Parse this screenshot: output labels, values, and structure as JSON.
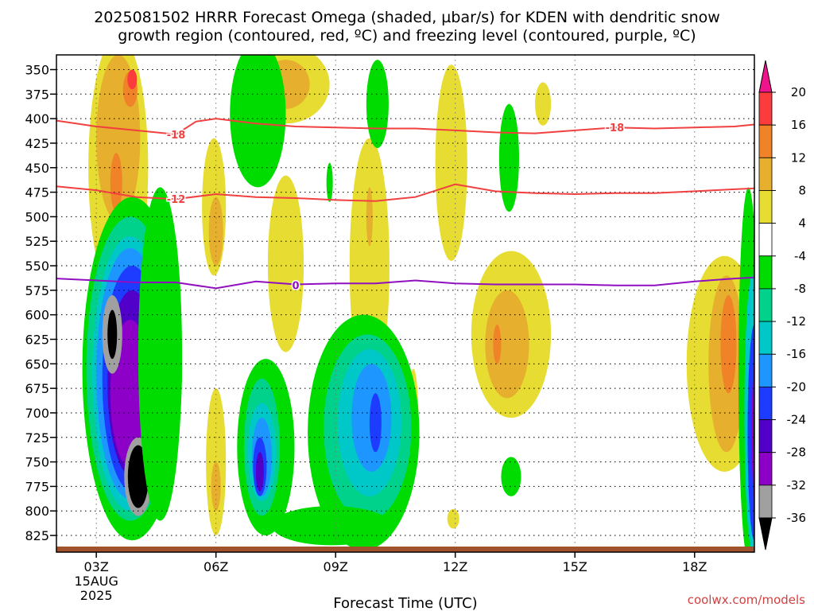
{
  "title_line1": "2025081502 HRRR Forecast Omega (shaded, µbar/s) for KDEN with dendritic snow",
  "title_line2": "growth region (contoured, red, ºC) and freezing level (contoured, purple, ºC)",
  "credit": "coolwx.com/models",
  "chart_data": {
    "type": "heatmap",
    "xlabel": "Forecast Time (UTC)",
    "ylabel": "",
    "x_ticks": [
      {
        "hour": 3,
        "label": "03Z",
        "sub1": "15AUG",
        "sub2": "2025"
      },
      {
        "hour": 6,
        "label": "06Z"
      },
      {
        "hour": 9,
        "label": "09Z"
      },
      {
        "hour": 12,
        "label": "12Z"
      },
      {
        "hour": 15,
        "label": "15Z"
      },
      {
        "hour": 18,
        "label": "18Z"
      }
    ],
    "xlim": [
      2.0,
      19.5
    ],
    "y_ticks": [
      350,
      375,
      400,
      425,
      450,
      475,
      500,
      525,
      550,
      575,
      600,
      625,
      650,
      675,
      700,
      725,
      750,
      775,
      800,
      825
    ],
    "ylim": [
      335,
      842
    ],
    "colorbar": {
      "levels": [
        -36,
        -32,
        -28,
        -24,
        -20,
        -16,
        -12,
        -8,
        -4,
        4,
        8,
        12,
        16,
        20
      ],
      "label_values": [
        "-36",
        "-32",
        "-28",
        "-24",
        "-20",
        "-16",
        "-12",
        "-8",
        "-4",
        "4",
        "8",
        "12",
        "16",
        "20"
      ],
      "colors_low_to_high": [
        "#000000",
        "#a0a0a0",
        "#8c00c8",
        "#5000c8",
        "#1e3cff",
        "#1e96ff",
        "#00c8c8",
        "#00d28c",
        "#00dc00",
        "#ffffff",
        "#e6dc32",
        "#e6af2d",
        "#f08228",
        "#fa3c3c",
        "#f0148c"
      ]
    },
    "blobs": [
      {
        "x": 3.55,
        "p": 450,
        "rx": 0.75,
        "ry": 135,
        "v": 5
      },
      {
        "x": 3.55,
        "p": 420,
        "rx": 0.55,
        "ry": 85,
        "v": 8
      },
      {
        "x": 3.5,
        "p": 465,
        "rx": 0.15,
        "ry": 30,
        "v": 12
      },
      {
        "x": 3.85,
        "p": 370,
        "rx": 0.18,
        "ry": 18,
        "v": 12
      },
      {
        "x": 3.9,
        "p": 360,
        "rx": 0.12,
        "ry": 10,
        "v": 16
      },
      {
        "x": 5.95,
        "p": 490,
        "rx": 0.3,
        "ry": 70,
        "v": 5
      },
      {
        "x": 6.0,
        "p": 515,
        "rx": 0.18,
        "ry": 35,
        "v": 8
      },
      {
        "x": 7.75,
        "p": 365,
        "rx": 1.1,
        "ry": 40,
        "v": 5
      },
      {
        "x": 7.75,
        "p": 365,
        "rx": 0.6,
        "ry": 25,
        "v": 8
      },
      {
        "x": 7.75,
        "p": 548,
        "rx": 0.45,
        "ry": 90,
        "v": 5
      },
      {
        "x": 9.85,
        "p": 550,
        "rx": 0.5,
        "ry": 130,
        "v": 5
      },
      {
        "x": 9.85,
        "p": 500,
        "rx": 0.08,
        "ry": 30,
        "v": 8
      },
      {
        "x": 11.9,
        "p": 445,
        "rx": 0.4,
        "ry": 100,
        "v": 5
      },
      {
        "x": 13.4,
        "p": 620,
        "rx": 1.0,
        "ry": 85,
        "v": 5
      },
      {
        "x": 13.3,
        "p": 630,
        "rx": 0.55,
        "ry": 55,
        "v": 8
      },
      {
        "x": 13.05,
        "p": 630,
        "rx": 0.1,
        "ry": 20,
        "v": 12
      },
      {
        "x": 14.2,
        "p": 385,
        "rx": 0.2,
        "ry": 22,
        "v": 5
      },
      {
        "x": 18.75,
        "p": 650,
        "rx": 0.95,
        "ry": 110,
        "v": 5
      },
      {
        "x": 18.8,
        "p": 650,
        "rx": 0.45,
        "ry": 90,
        "v": 8
      },
      {
        "x": 18.85,
        "p": 630,
        "rx": 0.2,
        "ry": 50,
        "v": 12
      },
      {
        "x": 6.0,
        "p": 750,
        "rx": 0.25,
        "ry": 75,
        "v": 5
      },
      {
        "x": 6.0,
        "p": 775,
        "rx": 0.12,
        "ry": 25,
        "v": 8
      },
      {
        "x": 10.95,
        "p": 710,
        "rx": 0.13,
        "ry": 55,
        "v": 5
      },
      {
        "x": 11.95,
        "p": 808,
        "rx": 0.15,
        "ry": 10,
        "v": 5
      },
      {
        "x": 7.05,
        "p": 395,
        "rx": 0.7,
        "ry": 75,
        "v": -6
      },
      {
        "x": 10.05,
        "p": 385,
        "rx": 0.28,
        "ry": 45,
        "v": -6
      },
      {
        "x": 8.85,
        "p": 465,
        "rx": 0.08,
        "ry": 20,
        "v": -6
      },
      {
        "x": 13.35,
        "p": 440,
        "rx": 0.25,
        "ry": 55,
        "v": -6
      },
      {
        "x": 13.4,
        "p": 765,
        "rx": 0.25,
        "ry": 20,
        "v": -6
      },
      {
        "x": 3.9,
        "p": 655,
        "rx": 1.25,
        "ry": 175,
        "v": -6
      },
      {
        "x": 3.85,
        "p": 655,
        "rx": 1.1,
        "ry": 155,
        "v": -10
      },
      {
        "x": 3.85,
        "p": 660,
        "rx": 0.95,
        "ry": 140,
        "v": -14
      },
      {
        "x": 3.85,
        "p": 660,
        "rx": 0.85,
        "ry": 128,
        "v": -18
      },
      {
        "x": 3.9,
        "p": 665,
        "rx": 0.75,
        "ry": 115,
        "v": -22
      },
      {
        "x": 3.9,
        "p": 670,
        "rx": 0.62,
        "ry": 95,
        "v": -26
      },
      {
        "x": 3.85,
        "p": 680,
        "rx": 0.5,
        "ry": 75,
        "v": -30
      },
      {
        "x": 3.4,
        "p": 620,
        "rx": 0.25,
        "ry": 40,
        "v": -34
      },
      {
        "x": 3.4,
        "p": 620,
        "rx": 0.12,
        "ry": 25,
        "v": -40
      },
      {
        "x": 4.05,
        "p": 765,
        "rx": 0.35,
        "ry": 40,
        "v": -34
      },
      {
        "x": 4.05,
        "p": 765,
        "rx": 0.26,
        "ry": 32,
        "v": -40
      },
      {
        "x": 4.6,
        "p": 640,
        "rx": 0.55,
        "ry": 170,
        "v": -6
      },
      {
        "x": 7.25,
        "p": 735,
        "rx": 0.72,
        "ry": 90,
        "v": -6
      },
      {
        "x": 7.15,
        "p": 735,
        "rx": 0.45,
        "ry": 70,
        "v": -10
      },
      {
        "x": 7.15,
        "p": 740,
        "rx": 0.35,
        "ry": 50,
        "v": -14
      },
      {
        "x": 7.15,
        "p": 745,
        "rx": 0.25,
        "ry": 40,
        "v": -18
      },
      {
        "x": 7.1,
        "p": 755,
        "rx": 0.17,
        "ry": 30,
        "v": -22
      },
      {
        "x": 7.1,
        "p": 760,
        "rx": 0.1,
        "ry": 20,
        "v": -26
      },
      {
        "x": 9.7,
        "p": 720,
        "rx": 1.4,
        "ry": 120,
        "v": -6
      },
      {
        "x": 9.8,
        "p": 715,
        "rx": 1.1,
        "ry": 95,
        "v": -10
      },
      {
        "x": 9.85,
        "p": 710,
        "rx": 0.8,
        "ry": 75,
        "v": -14
      },
      {
        "x": 9.9,
        "p": 705,
        "rx": 0.5,
        "ry": 55,
        "v": -18
      },
      {
        "x": 10.0,
        "p": 710,
        "rx": 0.15,
        "ry": 30,
        "v": -22
      },
      {
        "x": 8.9,
        "p": 815,
        "rx": 1.5,
        "ry": 20,
        "v": -6
      },
      {
        "x": 19.35,
        "p": 660,
        "rx": 0.25,
        "ry": 190,
        "v": -6
      },
      {
        "x": 19.45,
        "p": 700,
        "rx": 0.2,
        "ry": 140,
        "v": -14
      },
      {
        "x": 19.5,
        "p": 720,
        "rx": 0.17,
        "ry": 110,
        "v": -22
      },
      {
        "x": 19.55,
        "p": 720,
        "rx": 0.12,
        "ry": 80,
        "v": -30
      },
      {
        "x": 19.55,
        "p": 720,
        "rx": 0.07,
        "ry": 55,
        "v": -40
      }
    ],
    "contours": [
      {
        "name": "-18",
        "color": "#f04040",
        "label": "-18",
        "label_points": [
          [
            5.0,
            416
          ],
          [
            16.0,
            409
          ]
        ],
        "points": [
          [
            2.0,
            402
          ],
          [
            3.0,
            408
          ],
          [
            4.0,
            412
          ],
          [
            5.0,
            416
          ],
          [
            5.5,
            403
          ],
          [
            6.0,
            400
          ],
          [
            7.0,
            405
          ],
          [
            8.0,
            408
          ],
          [
            9.0,
            409
          ],
          [
            10.0,
            410
          ],
          [
            11.0,
            410
          ],
          [
            12.0,
            412
          ],
          [
            13.0,
            414
          ],
          [
            14.0,
            415
          ],
          [
            15.0,
            412
          ],
          [
            16.0,
            409
          ],
          [
            17.0,
            410
          ],
          [
            18.0,
            409
          ],
          [
            19.0,
            408
          ],
          [
            19.5,
            406
          ]
        ]
      },
      {
        "name": "-12",
        "color": "#f04040",
        "label": "-12",
        "label_points": [
          [
            5.0,
            482
          ]
        ],
        "points": [
          [
            2.0,
            469
          ],
          [
            3.0,
            473
          ],
          [
            4.0,
            480
          ],
          [
            5.0,
            482
          ],
          [
            6.0,
            477
          ],
          [
            7.0,
            480
          ],
          [
            8.0,
            481
          ],
          [
            9.0,
            483
          ],
          [
            10.0,
            484
          ],
          [
            11.0,
            480
          ],
          [
            12.0,
            467
          ],
          [
            13.0,
            474
          ],
          [
            14.0,
            476
          ],
          [
            15.0,
            477
          ],
          [
            16.0,
            476
          ],
          [
            17.0,
            476
          ],
          [
            18.0,
            474
          ],
          [
            19.0,
            472
          ],
          [
            19.5,
            471
          ]
        ]
      },
      {
        "name": "0",
        "color": "#9010c0",
        "label": "0",
        "label_points": [
          [
            8.0,
            570
          ]
        ],
        "points": [
          [
            2.0,
            563
          ],
          [
            3.0,
            565
          ],
          [
            4.0,
            567
          ],
          [
            5.0,
            567
          ],
          [
            6.0,
            573
          ],
          [
            7.0,
            566
          ],
          [
            8.0,
            569
          ],
          [
            9.0,
            568
          ],
          [
            10.0,
            568
          ],
          [
            11.0,
            565
          ],
          [
            12.0,
            568
          ],
          [
            13.0,
            569
          ],
          [
            14.0,
            569
          ],
          [
            15.0,
            569
          ],
          [
            16.0,
            570
          ],
          [
            17.0,
            570
          ],
          [
            18.0,
            566
          ],
          [
            19.0,
            563
          ],
          [
            19.5,
            562
          ]
        ]
      }
    ]
  }
}
